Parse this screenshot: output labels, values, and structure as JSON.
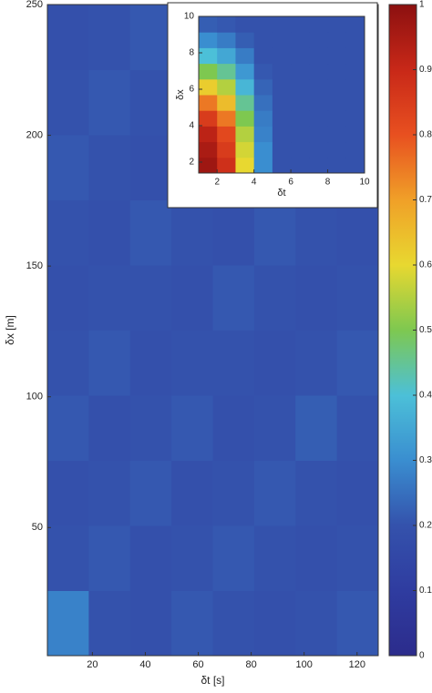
{
  "chart_data": [
    {
      "type": "heatmap",
      "xlabel": "δt [s]",
      "ylabel": "δx [m]",
      "xlim": [
        3,
        128
      ],
      "ylim": [
        1,
        250
      ],
      "xticks": [
        20,
        40,
        60,
        80,
        100,
        120
      ],
      "yticks": [
        50,
        100,
        150,
        200,
        250
      ],
      "z": [
        [
          0.28,
          0.2,
          0.19,
          0.21,
          0.2,
          0.19,
          0.2,
          0.21
        ],
        [
          0.2,
          0.21,
          0.19,
          0.2,
          0.21,
          0.2,
          0.19,
          0.2
        ],
        [
          0.19,
          0.2,
          0.21,
          0.19,
          0.2,
          0.21,
          0.2,
          0.19
        ],
        [
          0.21,
          0.19,
          0.2,
          0.21,
          0.19,
          0.2,
          0.22,
          0.2
        ],
        [
          0.2,
          0.21,
          0.19,
          0.2,
          0.2,
          0.19,
          0.2,
          0.21
        ],
        [
          0.19,
          0.2,
          0.2,
          0.19,
          0.21,
          0.2,
          0.19,
          0.2
        ],
        [
          0.2,
          0.19,
          0.21,
          0.2,
          0.19,
          0.21,
          0.2,
          0.19
        ],
        [
          0.21,
          0.2,
          0.19,
          0.21,
          0.2,
          0.19,
          0.21,
          0.2
        ],
        [
          0.2,
          0.21,
          0.2,
          0.19,
          0.21,
          0.2,
          0.19,
          0.21
        ],
        [
          0.19,
          0.2,
          0.21,
          0.2,
          0.19,
          0.2,
          0.21,
          0.2
        ]
      ]
    },
    {
      "type": "heatmap",
      "xlabel": "δt",
      "ylabel": "δx",
      "xlim": [
        1,
        10
      ],
      "ylim": [
        1.4,
        10
      ],
      "xticks": [
        2,
        4,
        6,
        8,
        10
      ],
      "yticks": [
        2,
        4,
        6,
        8,
        10
      ],
      "z": [
        [
          0.97,
          0.88,
          0.6,
          0.3,
          0.2,
          0.2,
          0.2,
          0.2,
          0.2
        ],
        [
          0.95,
          0.85,
          0.58,
          0.3,
          0.2,
          0.2,
          0.2,
          0.2,
          0.2
        ],
        [
          0.92,
          0.82,
          0.55,
          0.28,
          0.2,
          0.2,
          0.2,
          0.2,
          0.2
        ],
        [
          0.85,
          0.75,
          0.5,
          0.27,
          0.2,
          0.2,
          0.2,
          0.2,
          0.2
        ],
        [
          0.75,
          0.65,
          0.45,
          0.25,
          0.2,
          0.2,
          0.2,
          0.2,
          0.2
        ],
        [
          0.62,
          0.55,
          0.38,
          0.23,
          0.2,
          0.2,
          0.2,
          0.2,
          0.2
        ],
        [
          0.5,
          0.45,
          0.32,
          0.21,
          0.2,
          0.2,
          0.2,
          0.2,
          0.2
        ],
        [
          0.4,
          0.35,
          0.27,
          0.2,
          0.2,
          0.2,
          0.2,
          0.2,
          0.2
        ],
        [
          0.3,
          0.27,
          0.22,
          0.2,
          0.2,
          0.2,
          0.2,
          0.2,
          0.2
        ],
        [
          0.22,
          0.21,
          0.2,
          0.2,
          0.2,
          0.2,
          0.2,
          0.2,
          0.2
        ]
      ]
    },
    {
      "type": "colorbar",
      "clim": [
        0,
        1
      ],
      "cticks": [
        0,
        0.1,
        0.2,
        0.3,
        0.4,
        0.5,
        0.6,
        0.7,
        0.8,
        0.9,
        1
      ],
      "colormap": [
        "#2c2c8c",
        "#2f3ca0",
        "#3452ac",
        "#3a8ed0",
        "#4cc0d8",
        "#7ec850",
        "#e8d830",
        "#f0a028",
        "#e85020",
        "#c82818",
        "#8c1010"
      ]
    }
  ]
}
